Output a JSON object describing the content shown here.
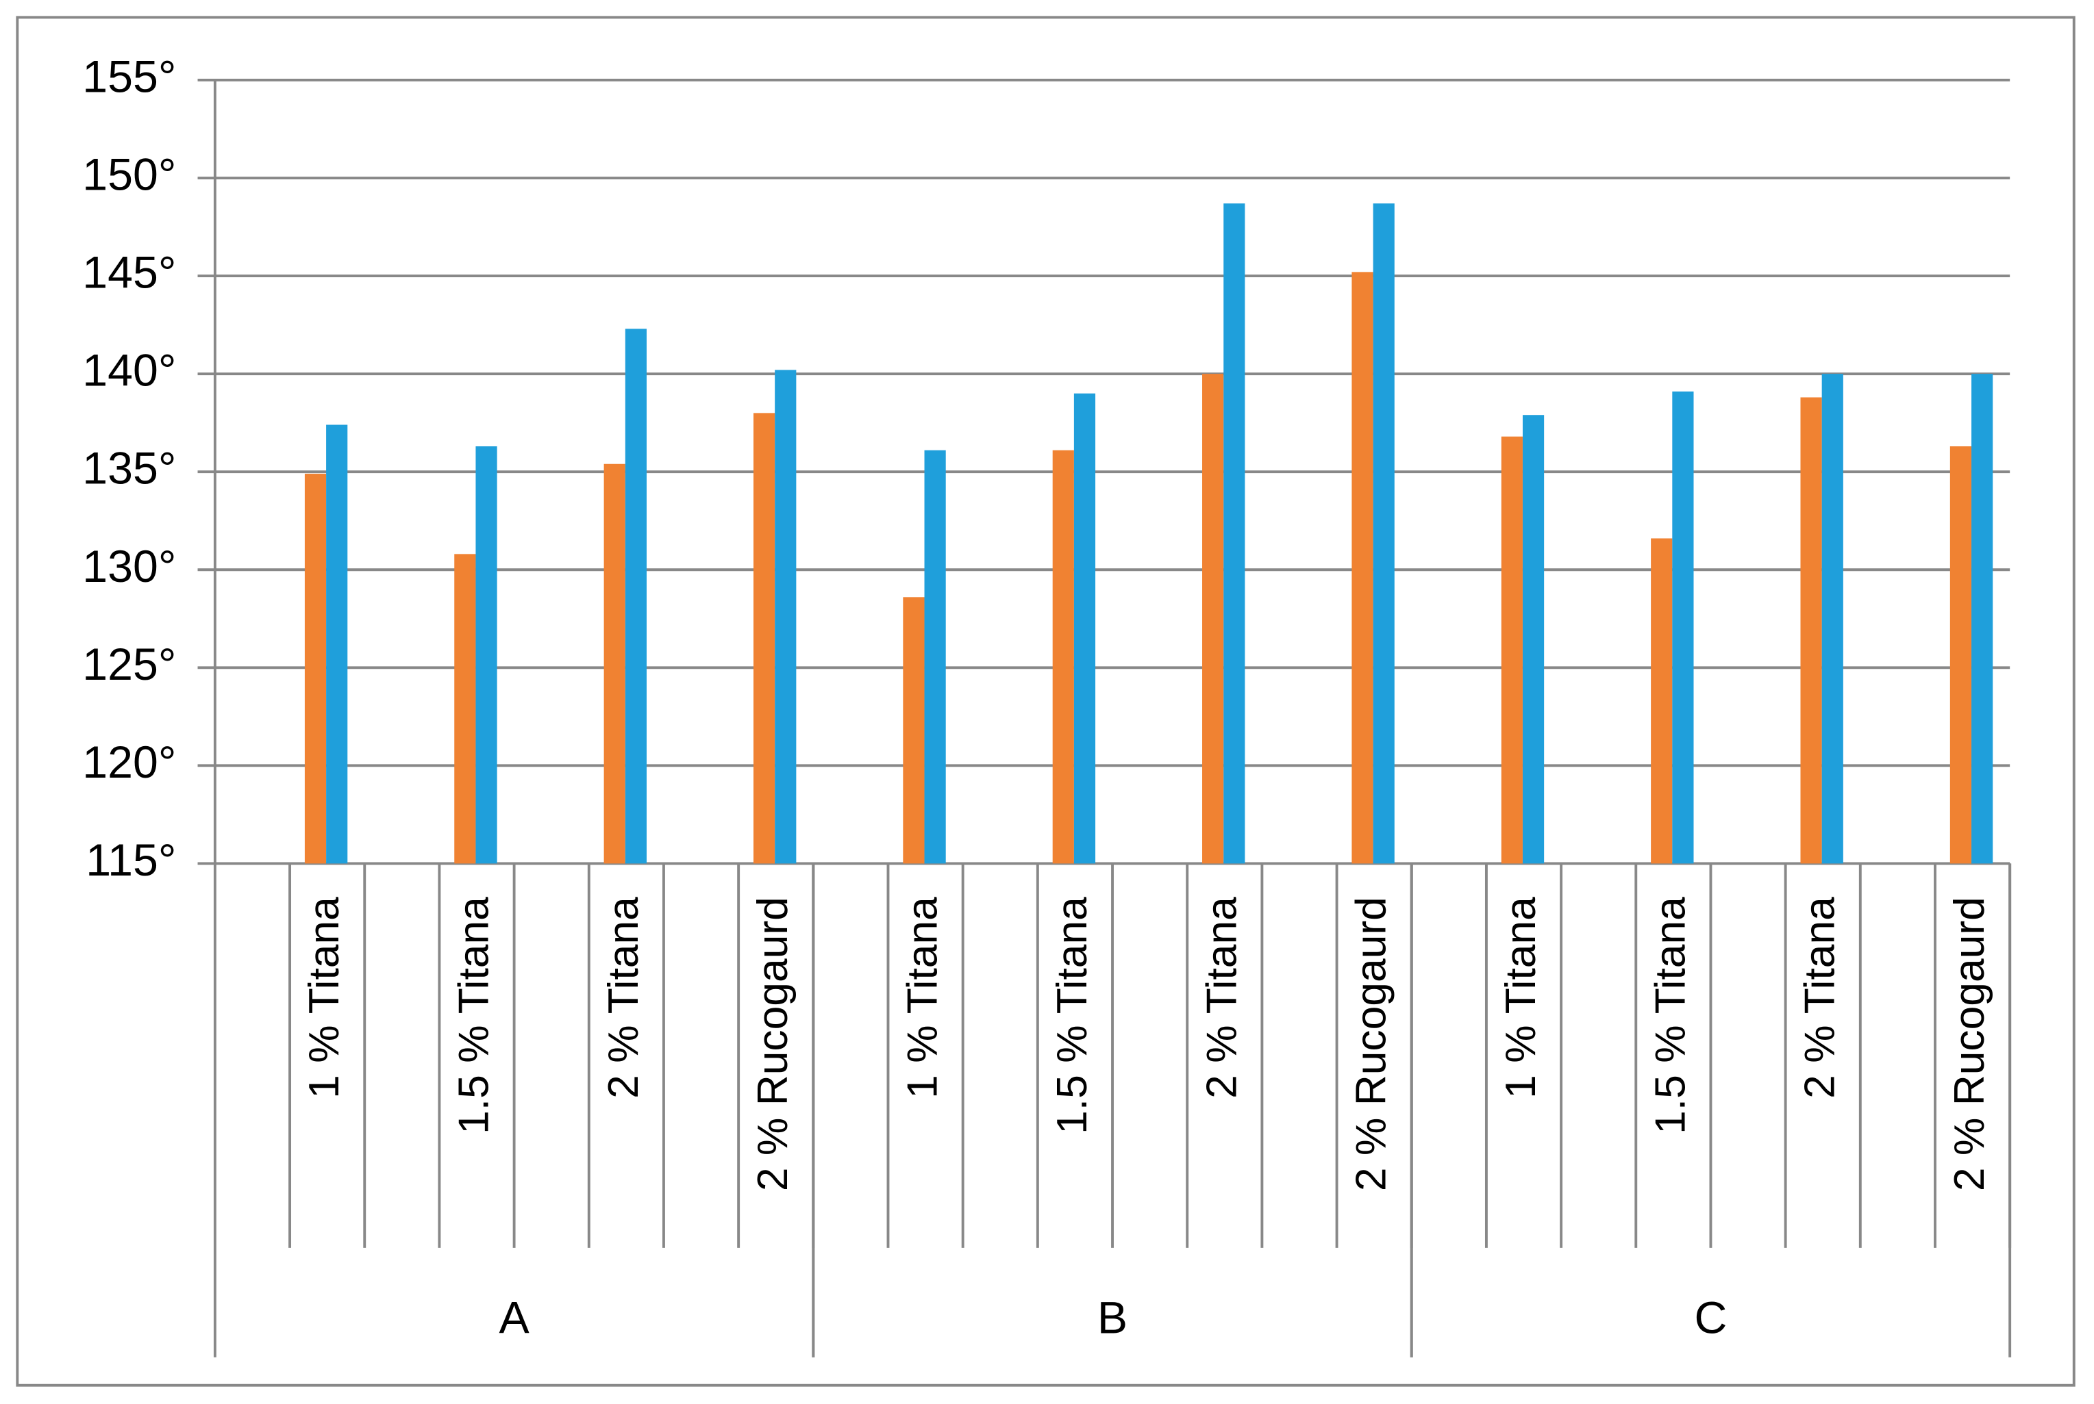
{
  "chart_data": {
    "type": "bar",
    "groups": [
      {
        "label": "A",
        "categories": [
          "1 % Titana",
          "1.5 % Titana",
          "2 % Titana",
          "2 % Rucogaurd"
        ]
      },
      {
        "label": "B",
        "categories": [
          "1 % Titana",
          "1.5 % Titana",
          "2 % Titana",
          "2 % Rucogaurd"
        ]
      },
      {
        "label": "C",
        "categories": [
          "1 % Titana",
          "1.5 % Titana",
          "2 % Titana",
          "2 % Rucogaurd"
        ]
      }
    ],
    "series": [
      {
        "color": "#f08232",
        "values": [
          134.9,
          130.8,
          135.4,
          138.0,
          128.6,
          136.1,
          140.0,
          145.2,
          136.8,
          131.6,
          138.8,
          136.3
        ]
      },
      {
        "color": "#1f9fdb",
        "values": [
          137.4,
          136.3,
          142.3,
          140.2,
          136.1,
          139.0,
          148.7,
          148.7,
          137.9,
          139.1,
          140.0,
          140.0
        ]
      }
    ],
    "ylim": [
      115,
      155
    ],
    "yticks": [
      {
        "value": 115,
        "label": "115°"
      },
      {
        "value": 120,
        "label": "120°"
      },
      {
        "value": 125,
        "label": "125°"
      },
      {
        "value": 130,
        "label": "130°"
      },
      {
        "value": 135,
        "label": "135°"
      },
      {
        "value": 140,
        "label": "140°"
      },
      {
        "value": 145,
        "label": "145°"
      },
      {
        "value": 150,
        "label": "150°"
      },
      {
        "value": 155,
        "label": "155°"
      }
    ],
    "grid": true
  }
}
